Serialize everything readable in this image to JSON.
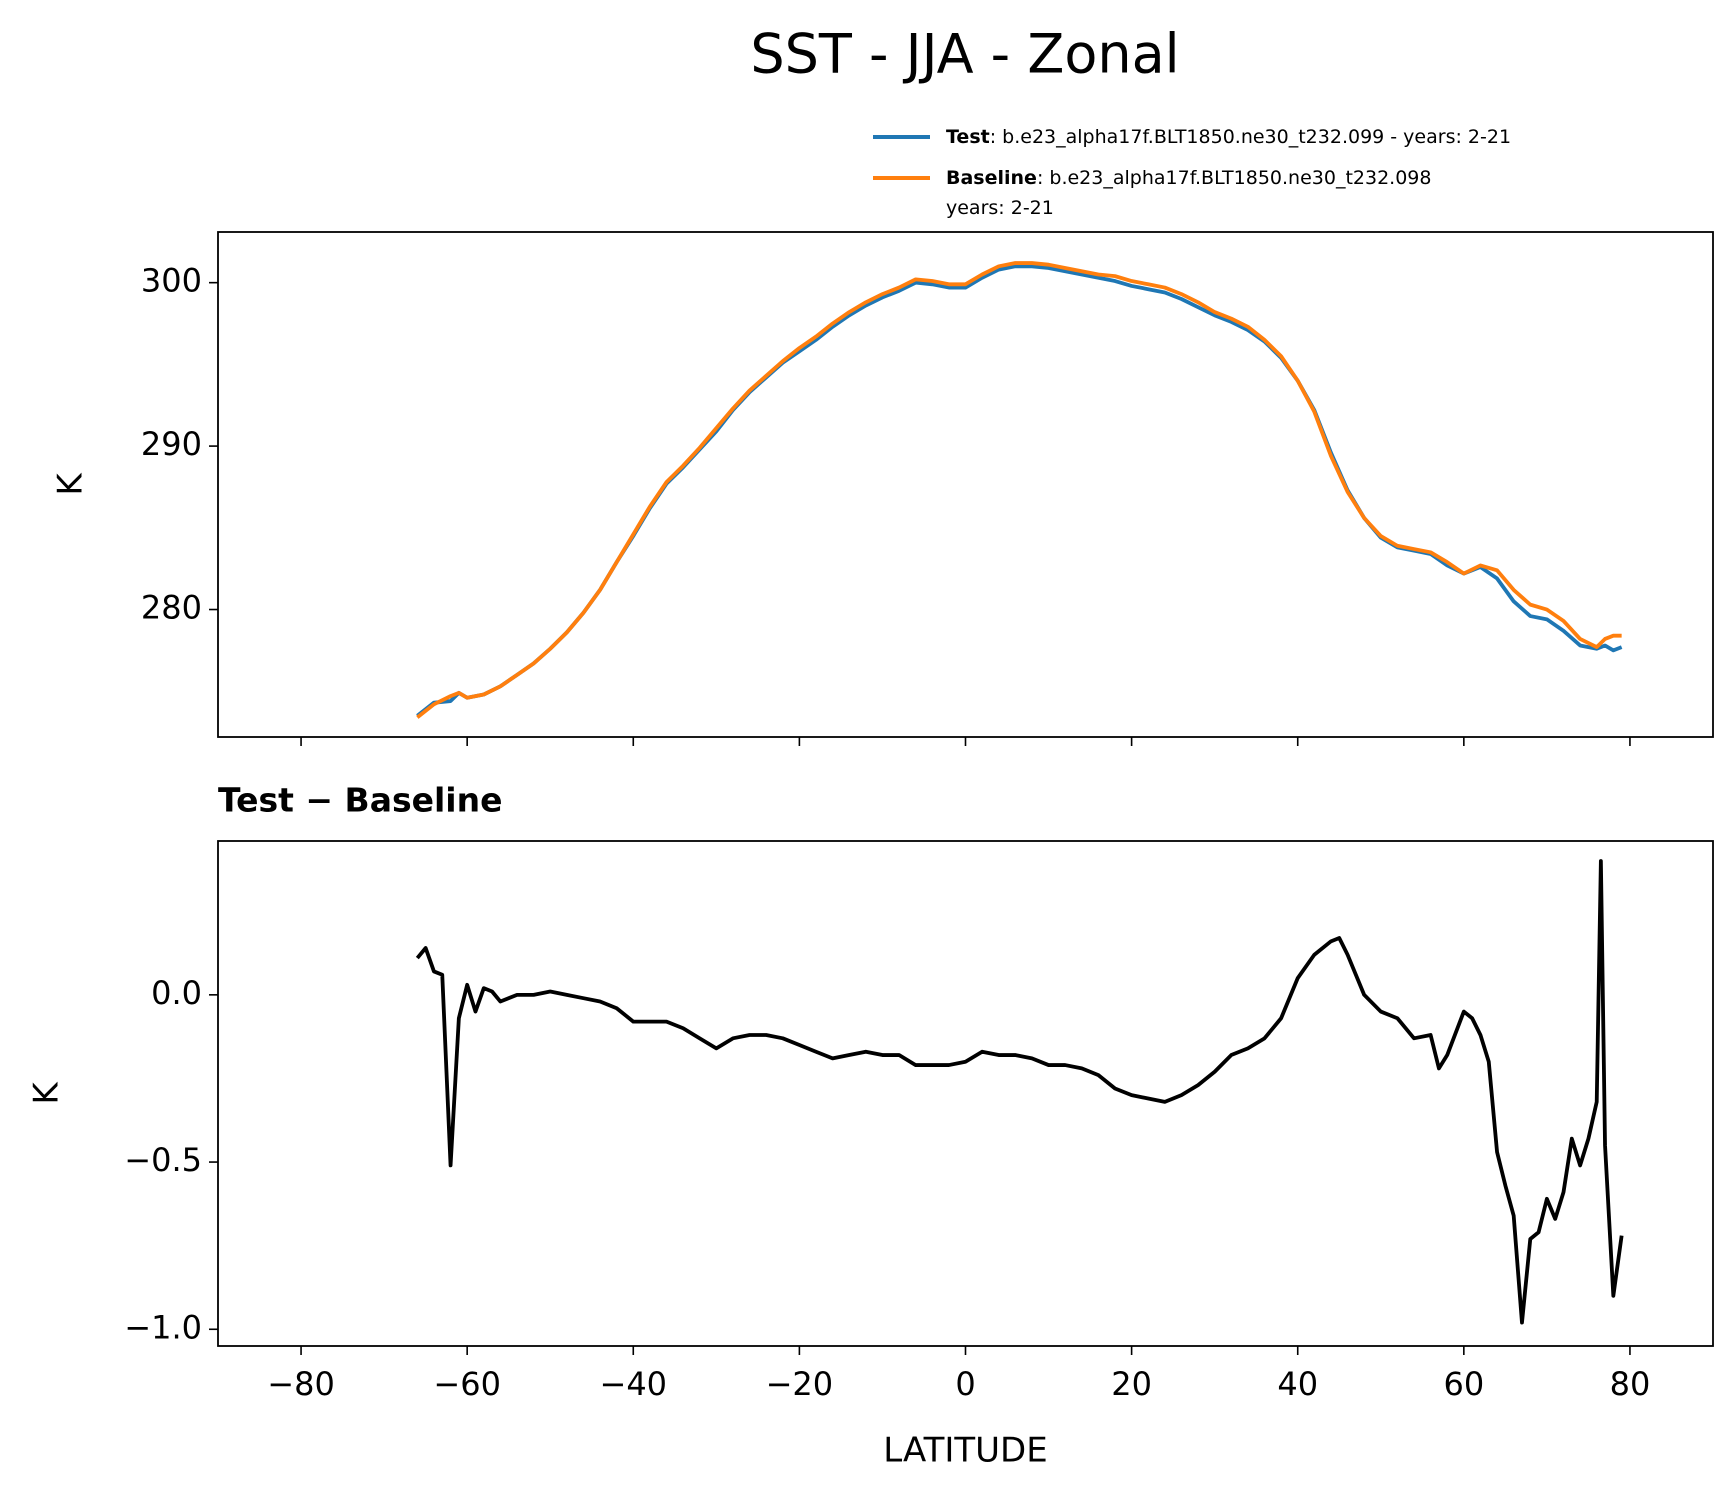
{
  "title": "SST - JJA - Zonal",
  "chart_data": [
    {
      "type": "line",
      "ylabel": "K",
      "legend": "above",
      "xlim": [
        -90,
        90
      ],
      "ylim": [
        272.2,
        303.1
      ],
      "yticks": [
        280,
        290,
        300
      ],
      "x": [
        -66,
        -64,
        -62,
        -61,
        -60,
        -58,
        -56,
        -54,
        -52,
        -50,
        -48,
        -46,
        -44,
        -42,
        -40,
        -38,
        -36,
        -34,
        -32,
        -30,
        -28,
        -26,
        -24,
        -22,
        -20,
        -18,
        -16,
        -14,
        -12,
        -10,
        -8,
        -6,
        -4,
        -2,
        0,
        2,
        4,
        6,
        8,
        10,
        12,
        14,
        16,
        18,
        20,
        22,
        24,
        26,
        28,
        30,
        32,
        34,
        36,
        38,
        40,
        42,
        44,
        46,
        48,
        50,
        52,
        54,
        56,
        58,
        60,
        62,
        64,
        66,
        68,
        70,
        72,
        74,
        76,
        77,
        78,
        79
      ],
      "series": [
        {
          "name": "Test",
          "description": [
            ": b.e23_alpha17f.BLT1850.ne30_t232.099 - years: 2-21"
          ],
          "color": "#1f77b4",
          "values": [
            273.5,
            274.3,
            274.4,
            274.9,
            274.6,
            274.8,
            275.3,
            276.0,
            276.7,
            277.6,
            278.6,
            279.8,
            281.2,
            282.9,
            284.5,
            286.2,
            287.7,
            288.7,
            289.8,
            290.9,
            292.2,
            293.3,
            294.2,
            295.1,
            295.8,
            296.5,
            297.3,
            298.0,
            298.6,
            299.1,
            299.5,
            300.0,
            299.9,
            299.7,
            299.7,
            300.3,
            300.8,
            301.0,
            301.0,
            300.9,
            300.7,
            300.5,
            300.3,
            300.1,
            299.8,
            299.6,
            299.4,
            299.0,
            298.5,
            298.0,
            297.6,
            297.1,
            296.4,
            295.4,
            294.0,
            292.2,
            289.6,
            287.3,
            285.6,
            284.4,
            283.8,
            283.6,
            283.4,
            282.7,
            282.2,
            282.6,
            281.9,
            280.5,
            279.6,
            279.4,
            278.7,
            277.8,
            277.6,
            277.8,
            277.5,
            277.7
          ]
        },
        {
          "name": "Baseline",
          "description": [
            ": b.e23_alpha17f.BLT1850.ne30_t232.098",
            "years: 2-21"
          ],
          "color": "#ff7f0e",
          "values": [
            273.4,
            274.2,
            274.7,
            274.9,
            274.6,
            274.8,
            275.3,
            276.0,
            276.7,
            277.6,
            278.6,
            279.8,
            281.2,
            282.9,
            284.6,
            286.3,
            287.8,
            288.8,
            289.9,
            291.1,
            292.3,
            293.4,
            294.3,
            295.2,
            296.0,
            296.7,
            297.5,
            298.2,
            298.8,
            299.3,
            299.7,
            300.2,
            300.1,
            299.9,
            299.9,
            300.5,
            301.0,
            301.2,
            301.2,
            301.1,
            300.9,
            300.7,
            300.5,
            300.4,
            300.1,
            299.9,
            299.7,
            299.3,
            298.8,
            298.2,
            297.8,
            297.3,
            296.5,
            295.5,
            294.0,
            292.1,
            289.4,
            287.2,
            285.6,
            284.5,
            283.9,
            283.7,
            283.5,
            282.9,
            282.2,
            282.7,
            282.4,
            281.2,
            280.3,
            280.0,
            279.3,
            278.2,
            277.7,
            278.2,
            278.4,
            278.4
          ]
        }
      ]
    },
    {
      "type": "line",
      "title": "Test − Baseline",
      "xlabel": "LATITUDE",
      "ylabel": "K",
      "xlim": [
        -90,
        90
      ],
      "ylim": [
        -1.05,
        0.46
      ],
      "xticks": [
        {
          "value": -80,
          "label": "−80"
        },
        {
          "value": -60,
          "label": "−60"
        },
        {
          "value": -40,
          "label": "−40"
        },
        {
          "value": -20,
          "label": "−20"
        },
        0,
        20,
        40,
        60,
        80
      ],
      "yticks": [
        {
          "value": -1.0,
          "label": "−1.0"
        },
        {
          "value": -0.5,
          "label": "−0.5"
        },
        {
          "value": 0.0,
          "label": "0.0"
        }
      ],
      "color": "#000000",
      "x": [
        -66,
        -65,
        -64,
        -63,
        -62,
        -61,
        -60,
        -59,
        -58,
        -57,
        -56,
        -54,
        -52,
        -50,
        -48,
        -46,
        -44,
        -42,
        -40,
        -38,
        -36,
        -34,
        -32,
        -30,
        -28,
        -26,
        -24,
        -22,
        -20,
        -18,
        -16,
        -14,
        -12,
        -10,
        -8,
        -6,
        -4,
        -2,
        0,
        2,
        4,
        6,
        8,
        10,
        12,
        14,
        16,
        18,
        20,
        22,
        24,
        26,
        28,
        30,
        32,
        34,
        36,
        38,
        40,
        42,
        44,
        45,
        46,
        48,
        50,
        52,
        54,
        56,
        57,
        58,
        60,
        61,
        62,
        63,
        64,
        65,
        66,
        67,
        68,
        69,
        70,
        71,
        72,
        73,
        74,
        75,
        76,
        76.5,
        77,
        78,
        79
      ],
      "values": [
        0.11,
        0.14,
        0.07,
        0.06,
        -0.51,
        -0.07,
        0.03,
        -0.05,
        0.02,
        0.01,
        -0.02,
        0,
        0,
        0.01,
        0,
        -0.01,
        -0.02,
        -0.04,
        -0.08,
        -0.08,
        -0.08,
        -0.1,
        -0.13,
        -0.16,
        -0.13,
        -0.12,
        -0.12,
        -0.13,
        -0.15,
        -0.17,
        -0.19,
        -0.18,
        -0.17,
        -0.18,
        -0.18,
        -0.21,
        -0.21,
        -0.21,
        -0.2,
        -0.17,
        -0.18,
        -0.18,
        -0.19,
        -0.21,
        -0.21,
        -0.22,
        -0.24,
        -0.28,
        -0.3,
        -0.31,
        -0.32,
        -0.3,
        -0.27,
        -0.23,
        -0.18,
        -0.16,
        -0.13,
        -0.07,
        0.05,
        0.12,
        0.16,
        0.17,
        0.12,
        0,
        -0.05,
        -0.07,
        -0.13,
        -0.12,
        -0.22,
        -0.18,
        -0.05,
        -0.07,
        -0.12,
        -0.2,
        -0.47,
        -0.57,
        -0.66,
        -0.98,
        -0.73,
        -0.71,
        -0.61,
        -0.67,
        -0.59,
        -0.43,
        -0.51,
        -0.43,
        -0.32,
        0.4,
        -0.45,
        -0.9,
        -0.72
      ]
    }
  ]
}
